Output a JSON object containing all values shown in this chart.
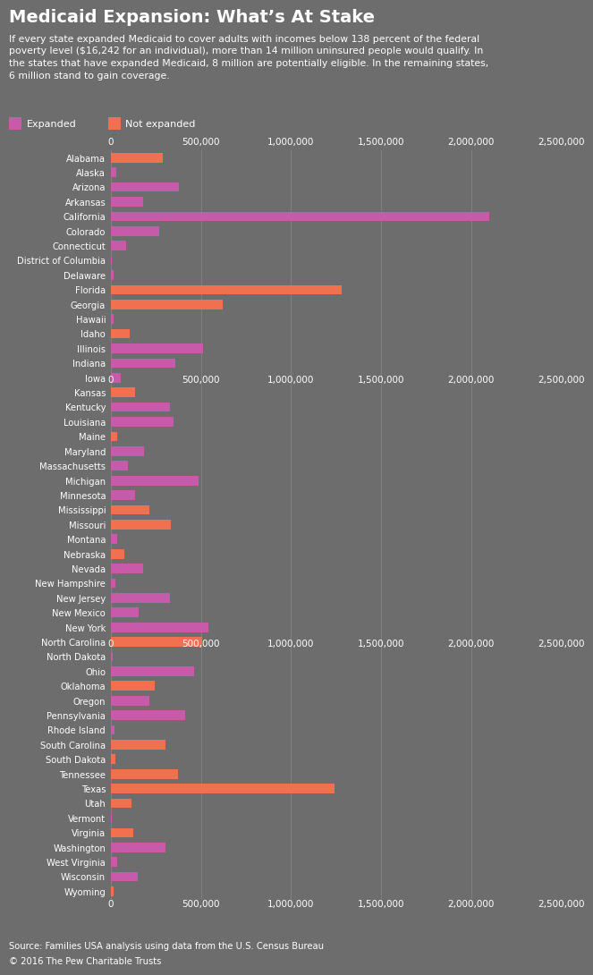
{
  "title": "Medicaid Expansion: What’s At Stake",
  "subtitle": "If every state expanded Medicaid to cover adults with incomes below 138 percent of the federal\npoverty level ($16,242 for an individual), more than 14 million uninsured people would qualify. In\nthe states that have expanded Medicaid, 8 million are potentially eligible. In the remaining states,\n6 million stand to gain coverage.",
  "source_line1": "Source: Families USA analysis using data from the U.S. Census Bureau",
  "source_line2": "© 2016 The Pew Charitable Trusts",
  "expanded_color": "#c85aaa",
  "not_expanded_color": "#f07050",
  "background_color": "#6d6d6d",
  "text_color": "#ffffff",
  "legend_expanded": "Expanded",
  "legend_not_expanded": "Not expanded",
  "states": [
    "Alabama",
    "Alaska",
    "Arizona",
    "Arkansas",
    "California",
    "Colorado",
    "Connecticut",
    "District of Columbia",
    "Delaware",
    "Florida",
    "Georgia",
    "Hawaii",
    "Idaho",
    "Illinois",
    "Indiana",
    "Iowa",
    "Kansas",
    "Kentucky",
    "Louisiana",
    "Maine",
    "Maryland",
    "Massachusetts",
    "Michigan",
    "Minnesota",
    "Mississippi",
    "Missouri",
    "Montana",
    "Nebraska",
    "Nevada",
    "New Hampshire",
    "New Jersey",
    "New Mexico",
    "New York",
    "North Carolina",
    "North Dakota",
    "Ohio",
    "Oklahoma",
    "Oregon",
    "Pennsylvania",
    "Rhode Island",
    "South Carolina",
    "South Dakota",
    "Tennessee",
    "Texas",
    "Utah",
    "Vermont",
    "Virginia",
    "Washington",
    "West Virginia",
    "Wisconsin",
    "Wyoming"
  ],
  "values": [
    290000,
    30000,
    380000,
    180000,
    2100000,
    270000,
    85000,
    5000,
    18000,
    1280000,
    620000,
    18000,
    105000,
    510000,
    360000,
    55000,
    135000,
    330000,
    350000,
    38000,
    185000,
    95000,
    490000,
    135000,
    215000,
    335000,
    38000,
    75000,
    180000,
    28000,
    330000,
    155000,
    540000,
    505000,
    10000,
    465000,
    245000,
    215000,
    415000,
    22000,
    305000,
    28000,
    375000,
    1240000,
    115000,
    8000,
    125000,
    305000,
    38000,
    148000,
    18000
  ],
  "expanded": [
    false,
    true,
    true,
    true,
    true,
    true,
    true,
    true,
    true,
    false,
    false,
    true,
    false,
    true,
    true,
    true,
    false,
    true,
    true,
    false,
    true,
    true,
    true,
    true,
    false,
    false,
    true,
    false,
    true,
    true,
    true,
    true,
    true,
    false,
    true,
    true,
    false,
    true,
    true,
    true,
    false,
    false,
    false,
    false,
    false,
    true,
    false,
    true,
    true,
    true,
    false
  ],
  "xlim": [
    0,
    2500000
  ],
  "xticks": [
    0,
    500000,
    1000000,
    1500000,
    2000000,
    2500000
  ],
  "xtick_labels": [
    "0",
    "500,000",
    "1,000,000",
    "1,500,000",
    "2,000,000",
    "2,500,000"
  ],
  "mid_axis_state_index": 16,
  "mid_axis2_state_index": 34
}
